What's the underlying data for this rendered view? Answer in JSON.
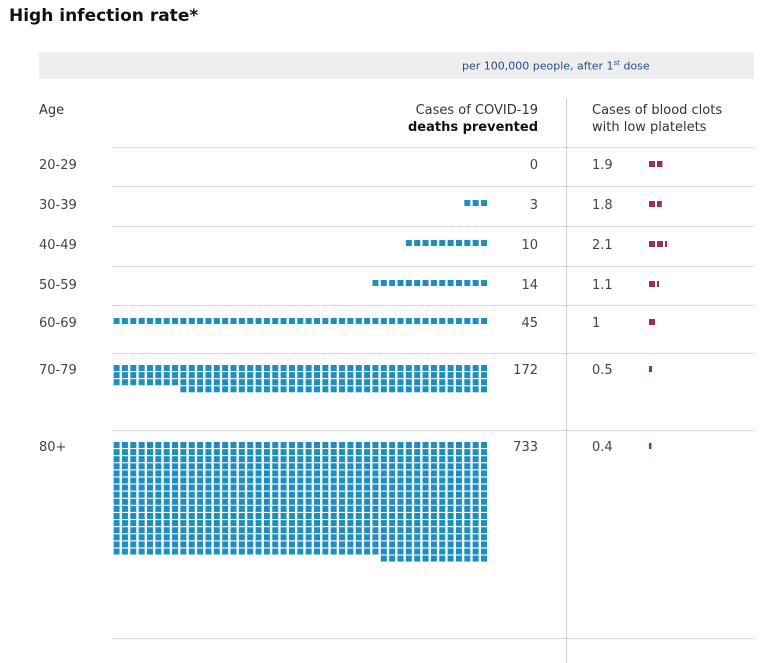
{
  "title": "High infection rate*",
  "band_note_main": "per 100,000 people, after 1",
  "band_note_sup": "st",
  "band_note_end": " dose",
  "headers": {
    "age": "Age",
    "deaths_line1": "Cases of COVID-19",
    "deaths_line2": "deaths prevented",
    "clots_line1": "Cases of blood clots",
    "clots_line2": "with low platelets"
  },
  "colors": {
    "deaths": "#1a8fc3",
    "clots": "#a8285e"
  },
  "chart_data": {
    "type": "bar",
    "categories": [
      "20-29",
      "30-39",
      "40-49",
      "50-59",
      "60-69",
      "70-79",
      "80+"
    ],
    "series": [
      {
        "name": "Cases of COVID-19 deaths prevented",
        "values": [
          0,
          3,
          10,
          14,
          45,
          172,
          733
        ]
      },
      {
        "name": "Cases of blood clots with low platelets",
        "values": [
          1.9,
          1.8,
          2.1,
          1.1,
          1,
          0.5,
          0.4
        ]
      }
    ],
    "value_labels": {
      "deaths": [
        "0",
        "3",
        "10",
        "14",
        "45",
        "172",
        "733"
      ],
      "clots": [
        "1.9",
        "1.8",
        "2.1",
        "1.1",
        "1",
        "0.5",
        "0.4"
      ]
    }
  }
}
